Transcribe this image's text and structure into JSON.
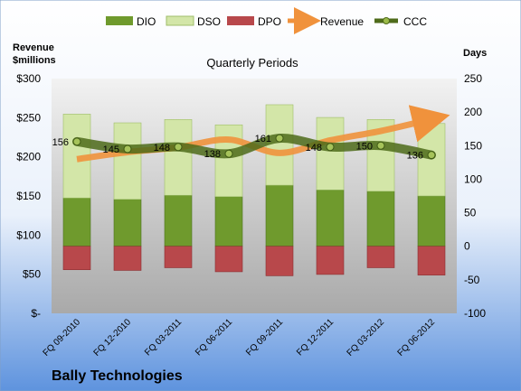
{
  "chart_data": {
    "type": "bar",
    "title": "Quarterly Periods",
    "left_axis_title": [
      "Revenue",
      "$millions"
    ],
    "right_axis_title": "Days",
    "company": "Bally Technologies",
    "categories": [
      "FQ 09-2010",
      "FQ 12-2010",
      "FQ 03-2011",
      "FQ 06-2011",
      "FQ 09-2011",
      "FQ 12-2011",
      "FQ 03-2012",
      "FQ 06-2012"
    ],
    "left_ticks": [
      "$-",
      "$50",
      "$100",
      "$150",
      "$200",
      "$250",
      "$300"
    ],
    "left_ylim": [
      0,
      300
    ],
    "right_ticks": [
      "-100",
      "-50",
      "0",
      "50",
      "100",
      "150",
      "200",
      "250"
    ],
    "right_ylim": [
      -100,
      250
    ],
    "legend": [
      "DIO",
      "DSO",
      "DPO",
      "Revenue",
      "CCC"
    ],
    "legend_position": "top",
    "series": [
      {
        "name": "DIO",
        "axis": "right",
        "color": "#6f9a2d",
        "values": [
          72,
          70,
          76,
          74,
          91,
          84,
          82,
          75
        ]
      },
      {
        "name": "DSO",
        "axis": "right",
        "color": "#d3e6a8",
        "values": [
          125,
          114,
          113,
          107,
          120,
          108,
          107,
          108
        ]
      },
      {
        "name": "DPO",
        "axis": "right",
        "color": "#b8484b",
        "values": [
          -35,
          -36,
          -32,
          -38,
          -44,
          -42,
          -32,
          -43
        ]
      },
      {
        "name": "Revenue",
        "axis": "left",
        "color": "#f0923c",
        "values": [
          197,
          206,
          212,
          222,
          205,
          221,
          233,
          248
        ]
      },
      {
        "name": "CCC",
        "axis": "right",
        "color": "#4e6b1a",
        "values": [
          156,
          145,
          148,
          138,
          161,
          148,
          150,
          136
        ]
      }
    ],
    "ccc_labels": [
      "156",
      "145",
      "148",
      "138",
      "161",
      "148",
      "150",
      "136"
    ],
    "grid": false
  }
}
